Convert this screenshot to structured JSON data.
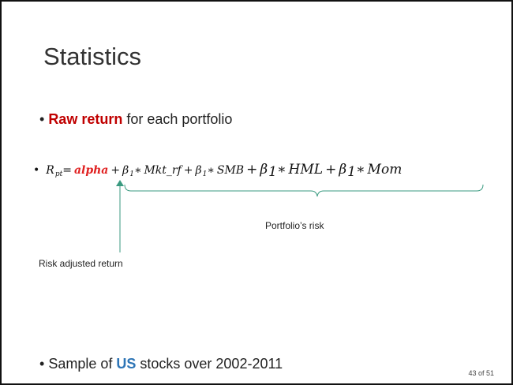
{
  "title": "Statistics",
  "bullets": [
    {
      "highlight": "Raw return",
      "rest": " for each portfolio"
    },
    {
      "before": "Sample of ",
      "highlight": "US",
      "rest": " stocks over 2002-2011"
    }
  ],
  "equation": [
    "R",
    "pt",
    "=",
    "alpha",
    "+",
    "β",
    "1",
    "∗",
    "Mkt_rf",
    "+",
    "β",
    "1",
    "∗",
    "SMB",
    "+",
    "β",
    "1",
    "∗",
    "HML",
    "+",
    "β",
    "1",
    "∗",
    "Mom"
  ],
  "annotations": {
    "brace": "Portfolio’s risk",
    "arrow": "Risk adjusted return"
  },
  "page_number": "43 of 51"
}
